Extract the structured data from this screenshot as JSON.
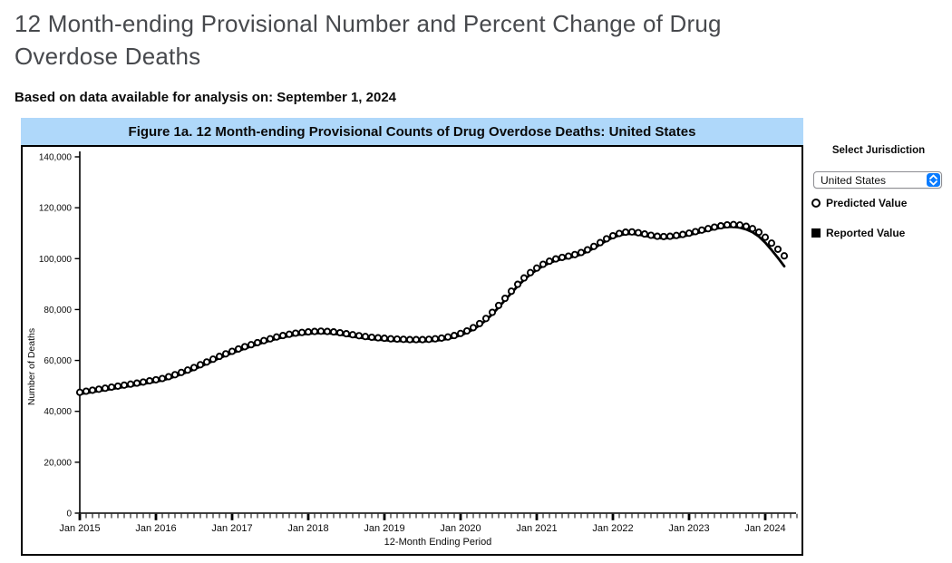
{
  "page": {
    "title": "12 Month-ending Provisional Number and Percent Change of Drug Overdose Deaths",
    "subtitle": "Based on data available for analysis on: September 1, 2024"
  },
  "figure": {
    "header": "Figure 1a. 12 Month-ending Provisional Counts of Drug Overdose Deaths: United States",
    "header_bg": "#afd8fa"
  },
  "sidebar": {
    "label": "Select Jurisdiction",
    "dropdown_value": "United States",
    "accent_color": "#0a7cff",
    "legend": [
      {
        "label": "Predicted Value",
        "marker": "open-circle"
      },
      {
        "label": "Reported Value",
        "marker": "filled-square"
      }
    ]
  },
  "chart_data": {
    "type": "line",
    "title": "Figure 1a. 12 Month-ending Provisional Counts of Drug Overdose Deaths: United States",
    "xlabel": "12-Month Ending Period",
    "ylabel": "Number of Deaths",
    "ylim": [
      0,
      140000
    ],
    "ytick_step": 20000,
    "grid": false,
    "legend_position": "right",
    "x_tick_labels": [
      "Jan 2015",
      "Jan 2016",
      "Jan 2017",
      "Jan 2018",
      "Jan 2019",
      "Jan 2020",
      "Jan 2021",
      "Jan 2022",
      "Jan 2023",
      "Jan 2024"
    ],
    "extra_minor_ticks": 2,
    "months": [
      "2015-01",
      "2015-02",
      "2015-03",
      "2015-04",
      "2015-05",
      "2015-06",
      "2015-07",
      "2015-08",
      "2015-09",
      "2015-10",
      "2015-11",
      "2015-12",
      "2016-01",
      "2016-02",
      "2016-03",
      "2016-04",
      "2016-05",
      "2016-06",
      "2016-07",
      "2016-08",
      "2016-09",
      "2016-10",
      "2016-11",
      "2016-12",
      "2017-01",
      "2017-02",
      "2017-03",
      "2017-04",
      "2017-05",
      "2017-06",
      "2017-07",
      "2017-08",
      "2017-09",
      "2017-10",
      "2017-11",
      "2017-12",
      "2018-01",
      "2018-02",
      "2018-03",
      "2018-04",
      "2018-05",
      "2018-06",
      "2018-07",
      "2018-08",
      "2018-09",
      "2018-10",
      "2018-11",
      "2018-12",
      "2019-01",
      "2019-02",
      "2019-03",
      "2019-04",
      "2019-05",
      "2019-06",
      "2019-07",
      "2019-08",
      "2019-09",
      "2019-10",
      "2019-11",
      "2019-12",
      "2020-01",
      "2020-02",
      "2020-03",
      "2020-04",
      "2020-05",
      "2020-06",
      "2020-07",
      "2020-08",
      "2020-09",
      "2020-10",
      "2020-11",
      "2020-12",
      "2021-01",
      "2021-02",
      "2021-03",
      "2021-04",
      "2021-05",
      "2021-06",
      "2021-07",
      "2021-08",
      "2021-09",
      "2021-10",
      "2021-11",
      "2021-12",
      "2022-01",
      "2022-02",
      "2022-03",
      "2022-04",
      "2022-05",
      "2022-06",
      "2022-07",
      "2022-08",
      "2022-09",
      "2022-10",
      "2022-11",
      "2022-12",
      "2023-01",
      "2023-02",
      "2023-03",
      "2023-04",
      "2023-05",
      "2023-06",
      "2023-07",
      "2023-08",
      "2023-09",
      "2023-10",
      "2023-11",
      "2023-12",
      "2024-01",
      "2024-02",
      "2024-03",
      "2024-04"
    ],
    "series": [
      {
        "name": "Predicted Value",
        "style": "open-circle-markers",
        "values": [
          47500,
          47900,
          48300,
          48700,
          49100,
          49500,
          49900,
          50300,
          50700,
          51100,
          51500,
          52000,
          52400,
          52900,
          53600,
          54400,
          55300,
          56200,
          57200,
          58300,
          59400,
          60500,
          61600,
          62600,
          63600,
          64500,
          65400,
          66200,
          67000,
          67800,
          68500,
          69200,
          69800,
          70300,
          70700,
          71000,
          71200,
          71400,
          71500,
          71400,
          71200,
          70900,
          70500,
          70100,
          69700,
          69400,
          69100,
          68900,
          68700,
          68500,
          68400,
          68300,
          68200,
          68200,
          68200,
          68300,
          68500,
          68800,
          69200,
          69800,
          70600,
          71600,
          72900,
          74500,
          76500,
          78900,
          81600,
          84400,
          87200,
          89900,
          92400,
          94500,
          96300,
          97800,
          99000,
          99900,
          100500,
          101000,
          101600,
          102400,
          103500,
          104800,
          106300,
          107800,
          109000,
          109900,
          110400,
          110500,
          110200,
          109700,
          109200,
          108800,
          108700,
          108800,
          109100,
          109500,
          110000,
          110600,
          111200,
          111800,
          112400,
          112900,
          113300,
          113400,
          113200,
          112700,
          111800,
          110400,
          108400,
          106100,
          103700,
          101100
        ]
      },
      {
        "name": "Reported Value",
        "style": "solid-line",
        "values": [
          46800,
          47200,
          47600,
          48000,
          48400,
          48800,
          49200,
          49600,
          50000,
          50400,
          50800,
          51300,
          51700,
          52200,
          52900,
          53700,
          54600,
          55500,
          56500,
          57600,
          58700,
          59800,
          60900,
          61900,
          62900,
          63800,
          64700,
          65500,
          66300,
          67100,
          67800,
          68500,
          69100,
          69600,
          70000,
          70300,
          70500,
          70700,
          70800,
          70700,
          70500,
          70200,
          69800,
          69400,
          69000,
          68700,
          68400,
          68200,
          68000,
          67800,
          67700,
          67600,
          67500,
          67500,
          67500,
          67600,
          67800,
          68100,
          68500,
          69100,
          69900,
          70900,
          72200,
          73800,
          75800,
          78200,
          80900,
          83700,
          86500,
          89200,
          91700,
          93800,
          95600,
          97100,
          98300,
          99200,
          99800,
          100300,
          100900,
          101700,
          102800,
          104100,
          105600,
          107100,
          108300,
          109200,
          109700,
          109800,
          109500,
          109000,
          108500,
          108100,
          108000,
          108100,
          108400,
          108800,
          109300,
          109900,
          110500,
          111100,
          111700,
          112100,
          112500,
          112500,
          112200,
          111500,
          110400,
          108700,
          106300,
          103400,
          100300,
          97000
        ]
      }
    ]
  }
}
